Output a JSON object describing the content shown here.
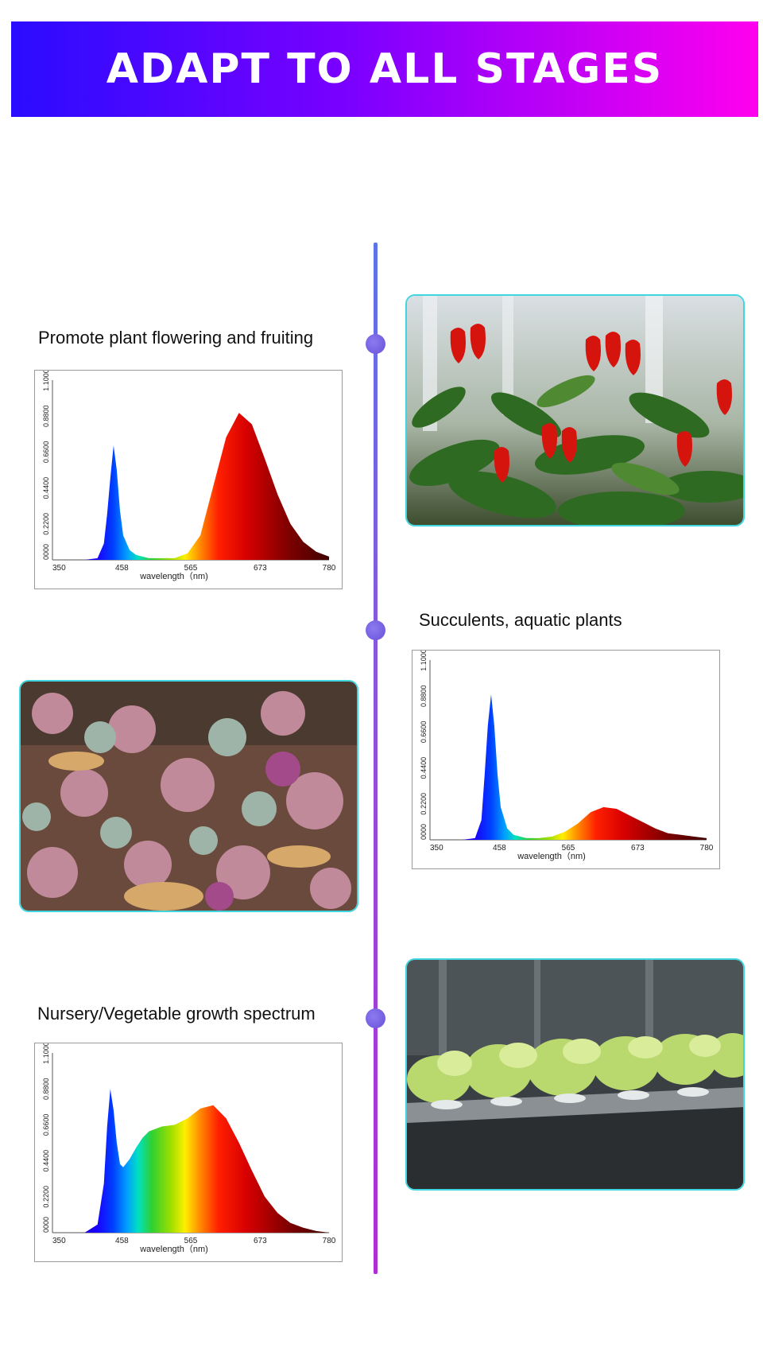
{
  "banner": {
    "title": "ADAPT TO ALL STAGES"
  },
  "stages": [
    {
      "label": "Promote plant flowering and fruiting",
      "photo": "red-pepper-plant-photo"
    },
    {
      "label": "Succulents, aquatic plants",
      "photo": "succulents-photo"
    },
    {
      "label": "Nursery/Vegetable growth spectrum",
      "photo": "lettuce-hydroponics-photo"
    }
  ],
  "chart_data": [
    {
      "type": "area",
      "xlabel": "wavelength（nm)",
      "ylabel": "",
      "xticks": [
        "350",
        "458",
        "565",
        "673",
        "780"
      ],
      "yticks": [
        "0000",
        "0.2200",
        "0.4400",
        "0.6600",
        "0.8800",
        "1.1000"
      ],
      "xlim": [
        350,
        780
      ],
      "ylim": [
        0,
        1.1
      ],
      "x": [
        350,
        400,
        420,
        430,
        435,
        440,
        445,
        450,
        455,
        460,
        470,
        480,
        490,
        500,
        520,
        540,
        560,
        580,
        600,
        620,
        640,
        660,
        680,
        700,
        720,
        740,
        760,
        780
      ],
      "y": [
        0,
        0,
        0.01,
        0.1,
        0.28,
        0.5,
        0.7,
        0.55,
        0.3,
        0.15,
        0.06,
        0.03,
        0.02,
        0.01,
        0.01,
        0.01,
        0.04,
        0.15,
        0.45,
        0.75,
        0.9,
        0.83,
        0.62,
        0.4,
        0.22,
        0.11,
        0.05,
        0.02
      ]
    },
    {
      "type": "area",
      "xlabel": "wavelength（nm)",
      "ylabel": "",
      "xticks": [
        "350",
        "458",
        "565",
        "673",
        "780"
      ],
      "yticks": [
        "0000",
        "0.2200",
        "0.4400",
        "0.6600",
        "0.8800",
        "1.1000"
      ],
      "xlim": [
        350,
        780
      ],
      "ylim": [
        0,
        1.1
      ],
      "x": [
        350,
        400,
        420,
        430,
        435,
        440,
        445,
        450,
        455,
        460,
        470,
        480,
        490,
        500,
        520,
        540,
        560,
        580,
        600,
        620,
        640,
        660,
        680,
        700,
        720,
        740,
        760,
        780
      ],
      "y": [
        0,
        0,
        0.01,
        0.12,
        0.4,
        0.7,
        0.89,
        0.7,
        0.4,
        0.2,
        0.07,
        0.03,
        0.02,
        0.01,
        0.01,
        0.02,
        0.05,
        0.1,
        0.17,
        0.2,
        0.19,
        0.15,
        0.11,
        0.07,
        0.04,
        0.03,
        0.02,
        0.01
      ]
    },
    {
      "type": "area",
      "xlabel": "wavelength（nm)",
      "ylabel": "",
      "xticks": [
        "350",
        "458",
        "565",
        "673",
        "780"
      ],
      "yticks": [
        "0000",
        "0.2200",
        "0.4400",
        "0.6600",
        "0.8800",
        "1.1000"
      ],
      "xlim": [
        350,
        780
      ],
      "ylim": [
        0,
        1.1
      ],
      "x": [
        350,
        400,
        420,
        430,
        435,
        440,
        445,
        450,
        455,
        460,
        470,
        480,
        490,
        500,
        520,
        540,
        560,
        580,
        600,
        620,
        640,
        660,
        680,
        700,
        720,
        740,
        760,
        780
      ],
      "y": [
        0,
        0,
        0.05,
        0.3,
        0.65,
        0.88,
        0.75,
        0.55,
        0.42,
        0.4,
        0.45,
        0.52,
        0.58,
        0.62,
        0.65,
        0.66,
        0.7,
        0.76,
        0.78,
        0.7,
        0.55,
        0.38,
        0.22,
        0.12,
        0.06,
        0.03,
        0.01,
        0
      ]
    }
  ]
}
